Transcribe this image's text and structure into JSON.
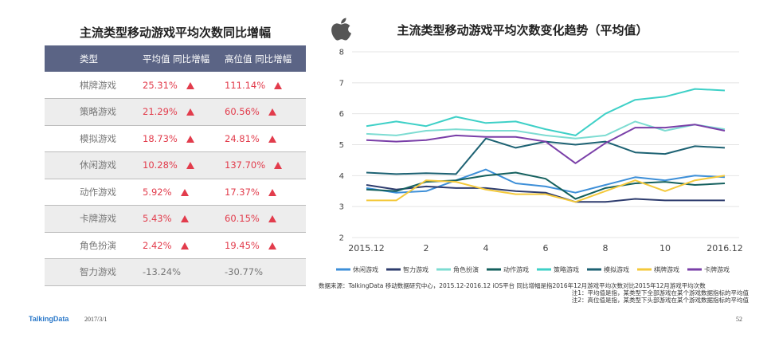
{
  "table": {
    "title": "主流类型移动游戏平均次数同比增幅",
    "headers": {
      "type": "类型",
      "avg": "平均值 同比增幅",
      "high": "高位值 同比增幅"
    },
    "rows": [
      {
        "type": "棋牌游戏",
        "avg": "25.31%",
        "high": "111.14%",
        "up": true
      },
      {
        "type": "策略游戏",
        "avg": "21.29%",
        "high": "60.56%",
        "up": true
      },
      {
        "type": "模拟游戏",
        "avg": "18.73%",
        "high": "24.81%",
        "up": true
      },
      {
        "type": "休闲游戏",
        "avg": "10.28%",
        "high": "137.70%",
        "up": true
      },
      {
        "type": "动作游戏",
        "avg": "5.92%",
        "high": "17.37%",
        "up": true
      },
      {
        "type": "卡牌游戏",
        "avg": "5.43%",
        "high": "60.15%",
        "up": true
      },
      {
        "type": "角色扮演",
        "avg": "2.42%",
        "high": "19.45%",
        "up": true
      },
      {
        "type": "智力游戏",
        "avg": "-13.24%",
        "high": "-30.77%",
        "up": false
      }
    ],
    "up_color": "#e23c4c"
  },
  "chart_data": {
    "type": "line",
    "title": "主流类型移动游戏平均次数变化趋势（平均值）",
    "x": [
      "2015.12",
      "1",
      "2",
      "3",
      "4",
      "5",
      "6",
      "7",
      "8",
      "9",
      "10",
      "11",
      "2016.12"
    ],
    "x_tick_labels": [
      {
        "index": 0,
        "label": "2015.12"
      },
      {
        "index": 2,
        "label": "2"
      },
      {
        "index": 4,
        "label": "4"
      },
      {
        "index": 6,
        "label": "6"
      },
      {
        "index": 8,
        "label": "8"
      },
      {
        "index": 10,
        "label": "10"
      },
      {
        "index": 12,
        "label": "2016.12"
      }
    ],
    "ylim": [
      2,
      8
    ],
    "y_ticks": [
      "2",
      "3",
      "4",
      "5",
      "6",
      "7",
      "8"
    ],
    "grid": true,
    "legend_position": "bottom",
    "series": [
      {
        "name": "休闲游戏",
        "color": "#3d8fd8",
        "values": [
          3.6,
          3.45,
          3.5,
          3.85,
          4.2,
          3.75,
          3.65,
          3.45,
          3.7,
          3.95,
          3.85,
          4.0,
          3.95
        ]
      },
      {
        "name": "智力游戏",
        "color": "#2e3c6e",
        "values": [
          3.7,
          3.55,
          3.65,
          3.6,
          3.6,
          3.5,
          3.45,
          3.15,
          3.15,
          3.25,
          3.2,
          3.2,
          3.2
        ]
      },
      {
        "name": "角色扮演",
        "color": "#7ddcd2",
        "values": [
          5.35,
          5.3,
          5.45,
          5.5,
          5.45,
          5.45,
          5.3,
          5.2,
          5.3,
          5.75,
          5.45,
          5.65,
          5.5
        ]
      },
      {
        "name": "动作游戏",
        "color": "#14605e",
        "values": [
          3.55,
          3.5,
          3.8,
          3.85,
          4.0,
          4.1,
          3.9,
          3.25,
          3.6,
          3.75,
          3.8,
          3.7,
          3.75
        ]
      },
      {
        "name": "策略游戏",
        "color": "#3ed0c7",
        "values": [
          5.6,
          5.75,
          5.6,
          5.9,
          5.7,
          5.75,
          5.5,
          5.3,
          6.0,
          6.45,
          6.55,
          6.8,
          6.75
        ]
      },
      {
        "name": "模拟游戏",
        "color": "#1d6273",
        "values": [
          4.1,
          4.05,
          4.08,
          4.05,
          5.2,
          4.9,
          5.1,
          5.0,
          5.1,
          4.75,
          4.7,
          4.95,
          4.9
        ]
      },
      {
        "name": "棋牌游戏",
        "color": "#f4c93b",
        "values": [
          3.2,
          3.2,
          3.85,
          3.8,
          3.55,
          3.4,
          3.4,
          3.15,
          3.5,
          3.85,
          3.5,
          3.85,
          4.0
        ]
      },
      {
        "name": "卡牌游戏",
        "color": "#7a3fa8",
        "values": [
          5.15,
          5.1,
          5.15,
          5.3,
          5.25,
          5.25,
          5.1,
          4.4,
          5.05,
          5.55,
          5.55,
          5.65,
          5.45
        ]
      }
    ]
  },
  "source_note": {
    "main": "数据来源：TalkingData 移动数据研究中心，2015.12-2016.12 iOS平台 同比增幅是指2016年12月游戏平均次数对比2015年12月游戏平均次数",
    "note1": "注1：平均值是指，某类型下全部游戏在某个游戏数据指标的平均值",
    "note2": "注2：高位值是指，某类型下头部游戏在某个游戏数据指标的平均值"
  },
  "footer": {
    "brand": "TalkingData",
    "date": "2017/3/1",
    "page": "52"
  }
}
